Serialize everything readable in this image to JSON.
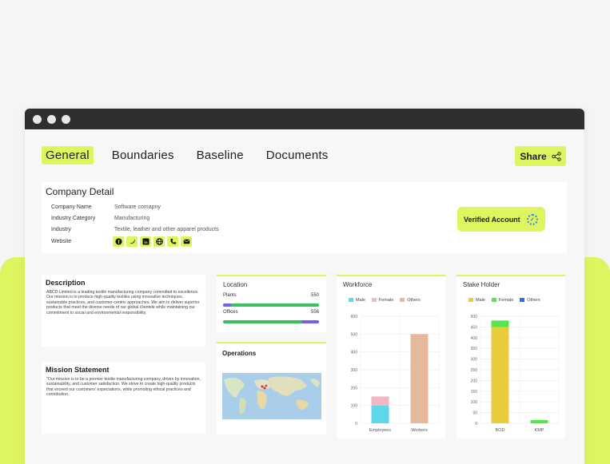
{
  "window": {
    "controls": [
      "close",
      "minimize",
      "maximize"
    ]
  },
  "tabs": [
    {
      "label": "General",
      "active": true
    },
    {
      "label": "Boundaries",
      "active": false
    },
    {
      "label": "Baseline",
      "active": false
    },
    {
      "label": "Documents",
      "active": false
    }
  ],
  "share": {
    "label": "Share",
    "icon": "share-icon"
  },
  "company": {
    "title": "Company Detail",
    "fields": [
      {
        "label": "Company Name",
        "value": "Software comapny"
      },
      {
        "label": "Industry Category",
        "value": "Manufacturing"
      },
      {
        "label": "Industry",
        "value": "Textile, leather and other apparel products"
      },
      {
        "label": "Website",
        "value": ""
      }
    ],
    "social_icons": [
      "facebook-icon",
      "twitter-icon",
      "linkedin-icon",
      "globe-icon",
      "phone-icon",
      "mail-icon"
    ],
    "verified_label": "Verified Account"
  },
  "description": {
    "title": "Description",
    "text": "ABCD Limited is a leading textile manufacturing company committed to excellence. Our mission is to produce high-quality textiles using innovative techniques, sustainable practices, and customer-centric approaches. We aim to deliver superior products that meet the diverse needs of our global clientele while maintaining our commitment to social and environmental responsibility."
  },
  "mission": {
    "title": "Mission Statement",
    "text": "\"Our mission is to be a premier textile manufacturing company, driven by innovation, sustainability, and customer satisfaction. We strive to create high-quality products that exceed our customers' expectations, while promoting ethical practices and contribution."
  },
  "location": {
    "title": "Location",
    "items": [
      {
        "label": "Plants",
        "value": "550",
        "fill": 0.08,
        "fill_color": "#7a5cf5"
      },
      {
        "label": "Offices",
        "value": "556",
        "fill_end": 0.82,
        "fill_color": "#7a5cf5"
      }
    ]
  },
  "operations": {
    "title": "Operations"
  },
  "chart_data": [
    {
      "type": "bar",
      "title": "Workforce",
      "stacked": true,
      "categories": [
        "Employees",
        "Workers"
      ],
      "series": [
        {
          "name": "Male",
          "color": "#5dd8e8",
          "values": [
            100,
            0
          ]
        },
        {
          "name": "Female",
          "color": "#f4b6c2",
          "values": [
            50,
            0
          ]
        },
        {
          "name": "Others",
          "color": "#e6b89c",
          "values": [
            0,
            500
          ]
        }
      ],
      "ylim": [
        0,
        600
      ],
      "yticks": [
        0,
        100,
        200,
        300,
        400,
        500,
        600
      ],
      "legend": "top"
    },
    {
      "type": "bar",
      "title": "Stake Holder",
      "stacked": true,
      "categories": [
        "BOD",
        "KMP"
      ],
      "series": [
        {
          "name": "Male",
          "color": "#e8cc3c",
          "values": [
            450,
            0
          ]
        },
        {
          "name": "Female",
          "color": "#55e64a",
          "values": [
            30,
            15
          ]
        },
        {
          "name": "Others",
          "color": "#2f6fe0",
          "values": [
            0,
            0
          ]
        }
      ],
      "ylim": [
        0,
        500
      ],
      "yticks": [
        0,
        50,
        100,
        150,
        200,
        250,
        300,
        350,
        400,
        450,
        500
      ],
      "legend": "top"
    }
  ]
}
